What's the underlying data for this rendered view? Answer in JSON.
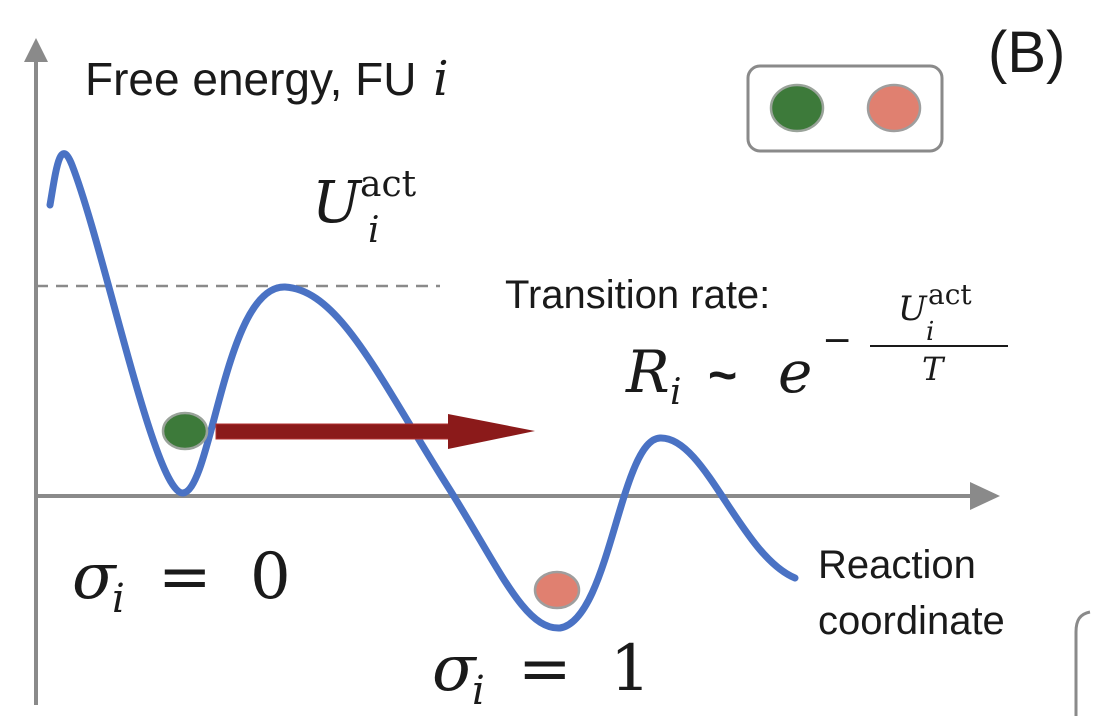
{
  "panel_label": "(B)",
  "y_axis_label": {
    "text": "Free energy, FU ",
    "index": "i"
  },
  "x_axis_label": {
    "line1": "Reaction",
    "line2": "coordinate"
  },
  "activation_label": {
    "symbol": "U",
    "superscript": "act",
    "subscript": "i"
  },
  "transition_rate": {
    "caption": "Transition rate:",
    "lhs_symbol": "R",
    "lhs_subscript": "i",
    "relation": "~",
    "base": "e",
    "sign": "−",
    "numerator_symbol": "U",
    "numerator_superscript": "act",
    "numerator_subscript": "i",
    "denominator": "T"
  },
  "state_labels": [
    {
      "symbol": "σ",
      "subscript": "i",
      "equals": "=",
      "value": "0"
    },
    {
      "symbol": "σ",
      "subscript": "i",
      "equals": "=",
      "value": "1"
    }
  ],
  "colors": {
    "curve": "#4a72c4",
    "axis": "#8a8a8a",
    "state_0_ball": "#3d7a3a",
    "state_1_ball": "#e08070",
    "arrow": "#8b1a1a",
    "dashed_line": "#8a8a8a",
    "legend_border": "#8a8a8a"
  }
}
